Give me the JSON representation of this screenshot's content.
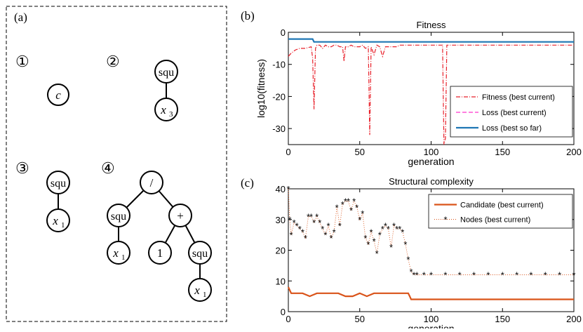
{
  "panel_a": {
    "label": "(a)",
    "trees": [
      {
        "number": "①",
        "nodes": [
          "c"
        ]
      },
      {
        "number": "②",
        "nodes": [
          "squ",
          "x3"
        ]
      },
      {
        "number": "③",
        "nodes": [
          "squ",
          "x1"
        ]
      },
      {
        "number": "④",
        "nodes": [
          "/",
          "squ",
          "+",
          "x1",
          "1",
          "squ",
          "x1"
        ]
      }
    ],
    "node_text": {
      "c": "c",
      "squ": "squ",
      "x": "x",
      "sub3": "3",
      "sub1": "1",
      "div": "/",
      "plus": "+",
      "one": "1"
    }
  },
  "chart_data": [
    {
      "panel_label": "(b)",
      "type": "line",
      "title": "Fitness",
      "xlabel": "generation",
      "ylabel": "log10(fitness)",
      "xlim": [
        0,
        200
      ],
      "ylim": [
        -35,
        0
      ],
      "xticks": [
        0,
        50,
        100,
        150,
        200
      ],
      "yticks": [
        0,
        -10,
        -20,
        -30
      ],
      "legend_position": "bottom-right",
      "series": [
        {
          "name": "Fitness (best current)",
          "style": "dash-dot",
          "color": "#e8202a",
          "x": [
            0,
            2,
            5,
            8,
            12,
            16,
            17,
            18,
            19,
            20,
            22,
            24,
            26,
            28,
            30,
            32,
            34,
            36,
            38,
            39,
            40,
            42,
            44,
            46,
            48,
            50,
            52,
            54,
            56,
            57,
            58,
            60,
            62,
            64,
            66,
            68,
            70,
            72,
            74,
            76,
            78,
            80,
            85,
            90,
            95,
            100,
            105,
            108,
            109,
            110,
            111,
            112,
            115,
            120,
            130,
            140,
            150,
            160,
            170,
            180,
            190,
            200
          ],
          "y": [
            -7.5,
            -6.5,
            -5.5,
            -5,
            -5,
            -4.5,
            -8,
            -24,
            -5,
            -4,
            -4,
            -5,
            -4,
            -4.5,
            -4.5,
            -4,
            -4,
            -4.5,
            -4.5,
            -9,
            -4.5,
            -4.5,
            -4,
            -4.5,
            -4.5,
            -4.5,
            -4,
            -5,
            -4.5,
            -32,
            -4.5,
            -7,
            -4,
            -4.5,
            -7.5,
            -4.5,
            -4.5,
            -4.5,
            -4.5,
            -4.5,
            -4,
            -4,
            -4,
            -4,
            -4,
            -4,
            -4,
            -4,
            -35,
            -33,
            -4,
            -4,
            -4,
            -4,
            -4,
            -4,
            -4,
            -4,
            -4,
            -4,
            -4,
            -4
          ]
        },
        {
          "name": "Loss (best current)",
          "style": "dashed",
          "color": "#ff33cc",
          "x": [
            0,
            17,
            18,
            200
          ],
          "y": [
            -2.1,
            -2.1,
            -3,
            -3
          ]
        },
        {
          "name": "Loss (best so far)",
          "style": "solid",
          "color": "#1f77b4",
          "x": [
            0,
            17,
            18,
            200
          ],
          "y": [
            -2.1,
            -2.1,
            -3,
            -3
          ]
        }
      ]
    },
    {
      "panel_label": "(c)",
      "type": "line",
      "title": "Structural complexity",
      "xlabel": "generation",
      "ylabel": "",
      "xlim": [
        0,
        200
      ],
      "ylim": [
        0,
        40
      ],
      "xticks": [
        0,
        50,
        100,
        150,
        200
      ],
      "yticks": [
        0,
        10,
        20,
        30,
        40
      ],
      "legend_position": "top-right",
      "series": [
        {
          "name": "Candidate (best current)",
          "style": "solid",
          "color": "#d95319",
          "x": [
            0,
            1,
            2,
            5,
            10,
            15,
            20,
            25,
            30,
            35,
            40,
            45,
            50,
            55,
            60,
            65,
            70,
            75,
            80,
            84,
            85,
            86,
            90,
            100,
            150,
            200
          ],
          "y": [
            8,
            7,
            6,
            6,
            6,
            5,
            6,
            6,
            6,
            6,
            5,
            5,
            6,
            5,
            6,
            6,
            6,
            6,
            6,
            6,
            5,
            4,
            4,
            4,
            4,
            4
          ]
        },
        {
          "name": "Nodes (best current)",
          "style": "dotted-star",
          "color": "#d95319",
          "x": [
            0,
            1,
            2,
            4,
            6,
            8,
            10,
            12,
            14,
            16,
            18,
            20,
            22,
            24,
            26,
            28,
            30,
            32,
            34,
            36,
            38,
            40,
            42,
            44,
            46,
            48,
            50,
            52,
            54,
            56,
            58,
            60,
            62,
            64,
            66,
            68,
            70,
            72,
            74,
            76,
            78,
            80,
            82,
            84,
            86,
            88,
            90,
            95,
            100,
            110,
            120,
            130,
            140,
            150,
            160,
            170,
            180,
            190,
            200
          ],
          "y": [
            40,
            30,
            25,
            29,
            28,
            27,
            26,
            24,
            31,
            31,
            29,
            31,
            29,
            27,
            25,
            28,
            24,
            26,
            34,
            28,
            35,
            36,
            36,
            33,
            36,
            34,
            30,
            32,
            24,
            22,
            26,
            23,
            19,
            25,
            27,
            28,
            27,
            21,
            28,
            27,
            27,
            26,
            22,
            17,
            13,
            12,
            12,
            12,
            12,
            12,
            12,
            12,
            12,
            12,
            12,
            12,
            12,
            12,
            12
          ]
        }
      ]
    }
  ]
}
